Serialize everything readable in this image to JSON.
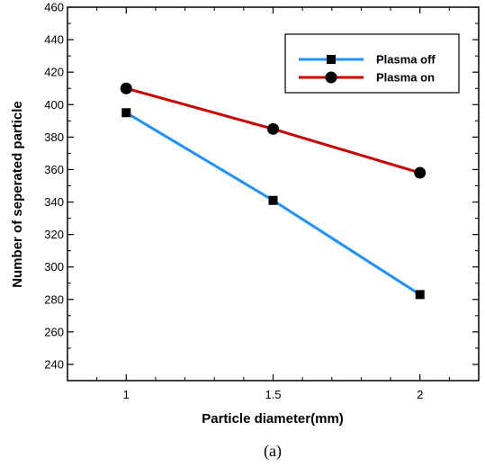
{
  "chart_data": {
    "type": "line",
    "title": "",
    "xlabel": "Particle diameter(mm)",
    "ylabel": "Number of seperated particle",
    "caption": "(a)",
    "x": [
      1,
      1.5,
      2
    ],
    "x_tick_labels": [
      "1",
      "1.5",
      "2"
    ],
    "xlim": [
      0.8,
      2.2
    ],
    "ylim": [
      230,
      460
    ],
    "y_ticks": [
      240,
      260,
      280,
      300,
      320,
      340,
      360,
      380,
      400,
      420,
      440,
      460
    ],
    "grid": false,
    "legend_position": "top-right",
    "series": [
      {
        "name": "Plasma off",
        "values": [
          395,
          341,
          283
        ],
        "color": "#1E90FF",
        "marker": "square"
      },
      {
        "name": "Plasma on",
        "values": [
          410,
          385,
          358
        ],
        "color": "#CC0000",
        "marker": "circle"
      }
    ]
  }
}
